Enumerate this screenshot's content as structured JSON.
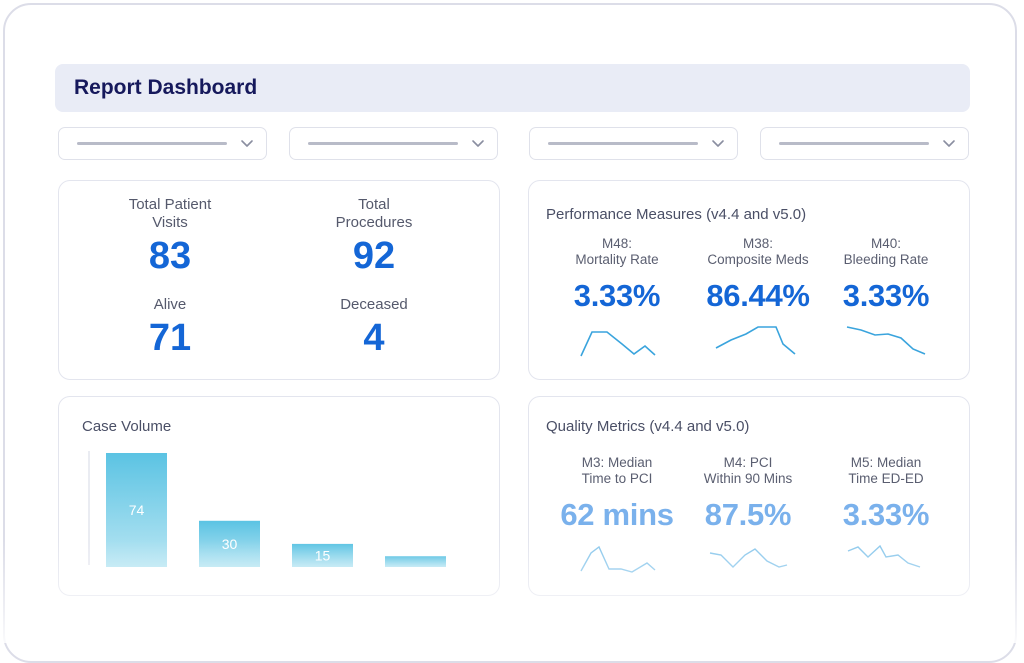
{
  "header": {
    "title": "Report Dashboard"
  },
  "summary": {
    "total_visits": {
      "label": "Total Patient\nVisits",
      "value": "83"
    },
    "total_procedures": {
      "label": "Total\nProcedures",
      "value": "92"
    },
    "alive": {
      "label": "Alive",
      "value": "71"
    },
    "deceased": {
      "label": "Deceased",
      "value": "4"
    }
  },
  "performance": {
    "title": "Performance Measures (v4.4 and v5.0)",
    "accent": "#1466d6",
    "metrics": [
      {
        "label": "M48:\nMortality Rate",
        "value": "3.33%"
      },
      {
        "label": "M38:\nComposite Meds",
        "value": "86.44%"
      },
      {
        "label": "M40:\nBleeding Rate",
        "value": "3.33%"
      }
    ]
  },
  "quality": {
    "title": "Quality Metrics (v4.4 and v5.0)",
    "accent": "#7ab1ec",
    "metrics": [
      {
        "label": "M3: Median\nTime to PCI",
        "value": "62 mins"
      },
      {
        "label": "M4: PCI\nWithin 90 Mins",
        "value": "87.5%"
      },
      {
        "label": "M5: Median\nTime ED-ED",
        "value": "3.33%"
      }
    ]
  },
  "case_volume": {
    "title": "Case Volume",
    "bar_color": "#5bc3e3",
    "chart_data": {
      "type": "bar",
      "title": "Case Volume",
      "categories": [
        "",
        "",
        "",
        ""
      ],
      "values": [
        74,
        30,
        15,
        7
      ],
      "data_labels": [
        "74",
        "30",
        "15",
        ""
      ],
      "ylim": [
        0,
        74
      ],
      "grid": false
    }
  }
}
